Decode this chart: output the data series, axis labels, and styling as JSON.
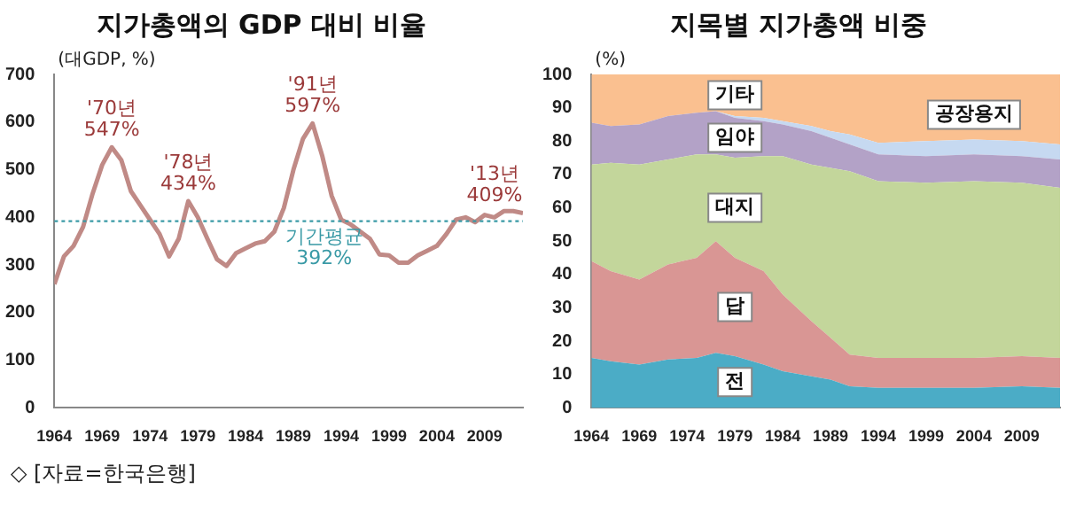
{
  "chart_data": [
    {
      "type": "line",
      "title": "지가총액의 GDP 대비 비율",
      "ylabel": "(대GDP, %)",
      "x": [
        1964,
        1965,
        1966,
        1967,
        1968,
        1969,
        1970,
        1971,
        1972,
        1973,
        1974,
        1975,
        1976,
        1977,
        1978,
        1979,
        1980,
        1981,
        1982,
        1983,
        1984,
        1985,
        1986,
        1987,
        1988,
        1989,
        1990,
        1991,
        1992,
        1993,
        1994,
        1995,
        1996,
        1997,
        1998,
        1999,
        2000,
        2001,
        2002,
        2003,
        2004,
        2005,
        2006,
        2007,
        2008,
        2009,
        2010,
        2011,
        2012,
        2013
      ],
      "series": [
        {
          "color": "#c08a86",
          "values": [
            260,
            318,
            340,
            380,
            450,
            510,
            547,
            520,
            455,
            425,
            395,
            365,
            318,
            355,
            434,
            400,
            355,
            312,
            298,
            325,
            335,
            345,
            350,
            370,
            420,
            500,
            565,
            597,
            530,
            445,
            395,
            385,
            370,
            355,
            322,
            320,
            305,
            305,
            320,
            330,
            340,
            365,
            395,
            400,
            390,
            405,
            400,
            413,
            413,
            409
          ]
        }
      ],
      "xlim": [
        1964,
        2013
      ],
      "xticks": [
        1964,
        1969,
        1974,
        1979,
        1984,
        1989,
        1994,
        1999,
        2004,
        2009
      ],
      "ylim": [
        0,
        700
      ],
      "yticks": [
        0,
        100,
        200,
        300,
        400,
        500,
        600,
        700
      ],
      "ref_lines": [
        {
          "axis": "y",
          "value": 392,
          "label": "기간평균\n392%",
          "color": "#3a9aa6",
          "line_style": "dotted"
        }
      ],
      "annotations": [
        {
          "text": "'70년\n547%",
          "x": 1970,
          "y": 547
        },
        {
          "text": "'78년\n434%",
          "x": 1978,
          "y": 434
        },
        {
          "text": "'91년\n597%",
          "x": 1991,
          "y": 597
        },
        {
          "text": "'13년\n409%",
          "x": 2013,
          "y": 409
        },
        "◇ [자료=한국은행]"
      ],
      "grid": false,
      "legend": false
    },
    {
      "type": "area",
      "title": "지목별 지가총액 비중",
      "ylabel": "(%)",
      "stacked": true,
      "x": [
        1964,
        1966,
        1969,
        1972,
        1975,
        1977,
        1979,
        1982,
        1984,
        1987,
        1989,
        1991,
        1994,
        1999,
        2004,
        2009,
        2013
      ],
      "series": [
        {
          "name": "전",
          "color": "#4bacc6",
          "values": [
            15,
            14,
            13,
            14.5,
            15,
            16.5,
            15.5,
            13,
            11,
            9.5,
            8.5,
            6.5,
            6,
            6,
            6,
            6.5,
            6
          ]
        },
        {
          "name": "답",
          "color": "#d99694",
          "values": [
            29,
            27,
            25.5,
            28.5,
            30,
            33.5,
            29.5,
            28,
            23,
            16.5,
            12.5,
            9.5,
            9,
            9,
            9,
            9,
            9
          ]
        },
        {
          "name": "대지",
          "color": "#c3d69b",
          "values": [
            29,
            32.5,
            34.5,
            31.5,
            31,
            26,
            30,
            34.5,
            41.5,
            47,
            51,
            55,
            53,
            52.5,
            53,
            52,
            51
          ]
        },
        {
          "name": "임야",
          "color": "#b3a2c7",
          "values": [
            12.5,
            11,
            12,
            13,
            12.5,
            13,
            12,
            10.5,
            9.5,
            10,
            9,
            8,
            8,
            8,
            8,
            8,
            8.5
          ]
        },
        {
          "name": "공장용지",
          "color": "#c6d9f1",
          "values": [
            0,
            0,
            0,
            0,
            0,
            0,
            0.5,
            1,
            1,
            1.5,
            2,
            3,
            3.5,
            4.5,
            4.5,
            4.5,
            4.5
          ]
        },
        {
          "name": "기타",
          "color": "#fac090",
          "values": [
            14.5,
            15.5,
            15,
            12.5,
            11.5,
            11,
            12.5,
            13,
            14,
            15.5,
            17,
            18,
            20.5,
            20,
            19.5,
            20,
            21
          ]
        }
      ],
      "xlim": [
        1964,
        2013
      ],
      "xticks": [
        1964,
        1969,
        1974,
        1979,
        1984,
        1989,
        1994,
        1999,
        2004,
        2009
      ],
      "ylim": [
        0,
        100
      ],
      "yticks": [
        0,
        10,
        20,
        30,
        40,
        50,
        60,
        70,
        80,
        90,
        100
      ],
      "grid": false,
      "legend": false
    }
  ]
}
